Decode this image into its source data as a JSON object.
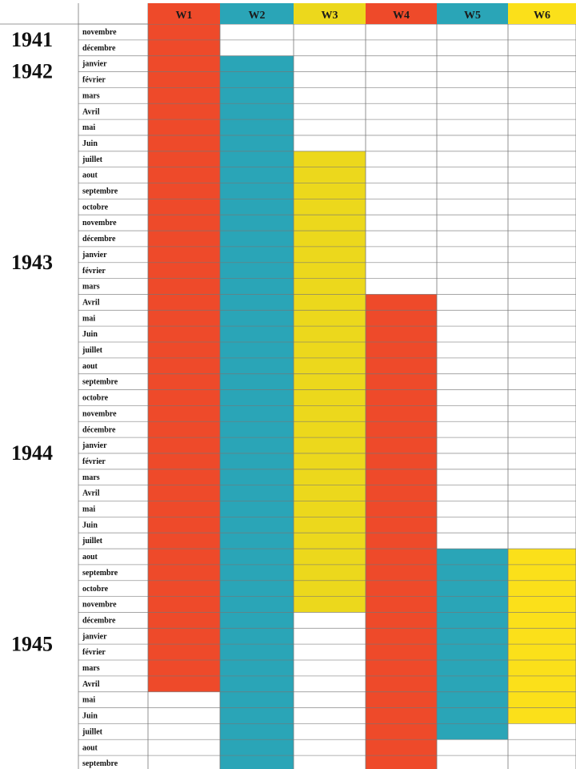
{
  "chart_data": {
    "type": "table",
    "title": "",
    "columns": [
      {
        "label": "W1",
        "color": "#ee4a2a"
      },
      {
        "label": "W2",
        "color": "#2aa5b7"
      },
      {
        "label": "W3",
        "color": "#ecd81c"
      },
      {
        "label": "W4",
        "color": "#ee4a2a"
      },
      {
        "label": "W5",
        "color": "#2aa5b7"
      },
      {
        "label": "W6",
        "color": "#fbe01a"
      }
    ],
    "rows": [
      {
        "year": "1941",
        "month": "novembre"
      },
      {
        "year": "",
        "month": "décembre"
      },
      {
        "year": "1942",
        "month": "janvier"
      },
      {
        "year": "",
        "month": "février"
      },
      {
        "year": "",
        "month": "mars"
      },
      {
        "year": "",
        "month": "Avril"
      },
      {
        "year": "",
        "month": "mai"
      },
      {
        "year": "",
        "month": "Juin"
      },
      {
        "year": "",
        "month": "juillet"
      },
      {
        "year": "",
        "month": "aout"
      },
      {
        "year": "",
        "month": "septembre"
      },
      {
        "year": "",
        "month": "octobre"
      },
      {
        "year": "",
        "month": "novembre"
      },
      {
        "year": "",
        "month": "décembre"
      },
      {
        "year": "1943",
        "month": "janvier"
      },
      {
        "year": "",
        "month": "février"
      },
      {
        "year": "",
        "month": "mars"
      },
      {
        "year": "",
        "month": "Avril"
      },
      {
        "year": "",
        "month": "mai"
      },
      {
        "year": "",
        "month": "Juin"
      },
      {
        "year": "",
        "month": "juillet"
      },
      {
        "year": "",
        "month": "aout"
      },
      {
        "year": "",
        "month": "septembre"
      },
      {
        "year": "",
        "month": "octobre"
      },
      {
        "year": "",
        "month": "novembre"
      },
      {
        "year": "",
        "month": "décembre"
      },
      {
        "year": "1944",
        "month": "janvier"
      },
      {
        "year": "",
        "month": "février"
      },
      {
        "year": "",
        "month": "mars"
      },
      {
        "year": "",
        "month": "Avril"
      },
      {
        "year": "",
        "month": "mai"
      },
      {
        "year": "",
        "month": "Juin"
      },
      {
        "year": "",
        "month": "juillet"
      },
      {
        "year": "",
        "month": "aout"
      },
      {
        "year": "",
        "month": "septembre"
      },
      {
        "year": "",
        "month": "octobre"
      },
      {
        "year": "",
        "month": "novembre"
      },
      {
        "year": "",
        "month": "décembre"
      },
      {
        "year": "1945",
        "month": "janvier"
      },
      {
        "year": "",
        "month": "février"
      },
      {
        "year": "",
        "month": "mars"
      },
      {
        "year": "",
        "month": "Avril"
      },
      {
        "year": "",
        "month": "mai"
      },
      {
        "year": "",
        "month": "Juin"
      },
      {
        "year": "",
        "month": "juillet"
      },
      {
        "year": "",
        "month": "aout"
      },
      {
        "year": "",
        "month": "septembre"
      }
    ],
    "spans": [
      {
        "column": "W1",
        "start": "1941-11",
        "end": "1945-04"
      },
      {
        "column": "W2",
        "start": "1942-01",
        "end": "1945-09"
      },
      {
        "column": "W3",
        "start": "1942-07",
        "end": "1944-11"
      },
      {
        "column": "W4",
        "start": "1943-04",
        "end": "1945-09"
      },
      {
        "column": "W5",
        "start": "1944-08",
        "end": "1945-07"
      },
      {
        "column": "W6",
        "start": "1944-08",
        "end": "1945-06"
      }
    ],
    "grid": true
  }
}
